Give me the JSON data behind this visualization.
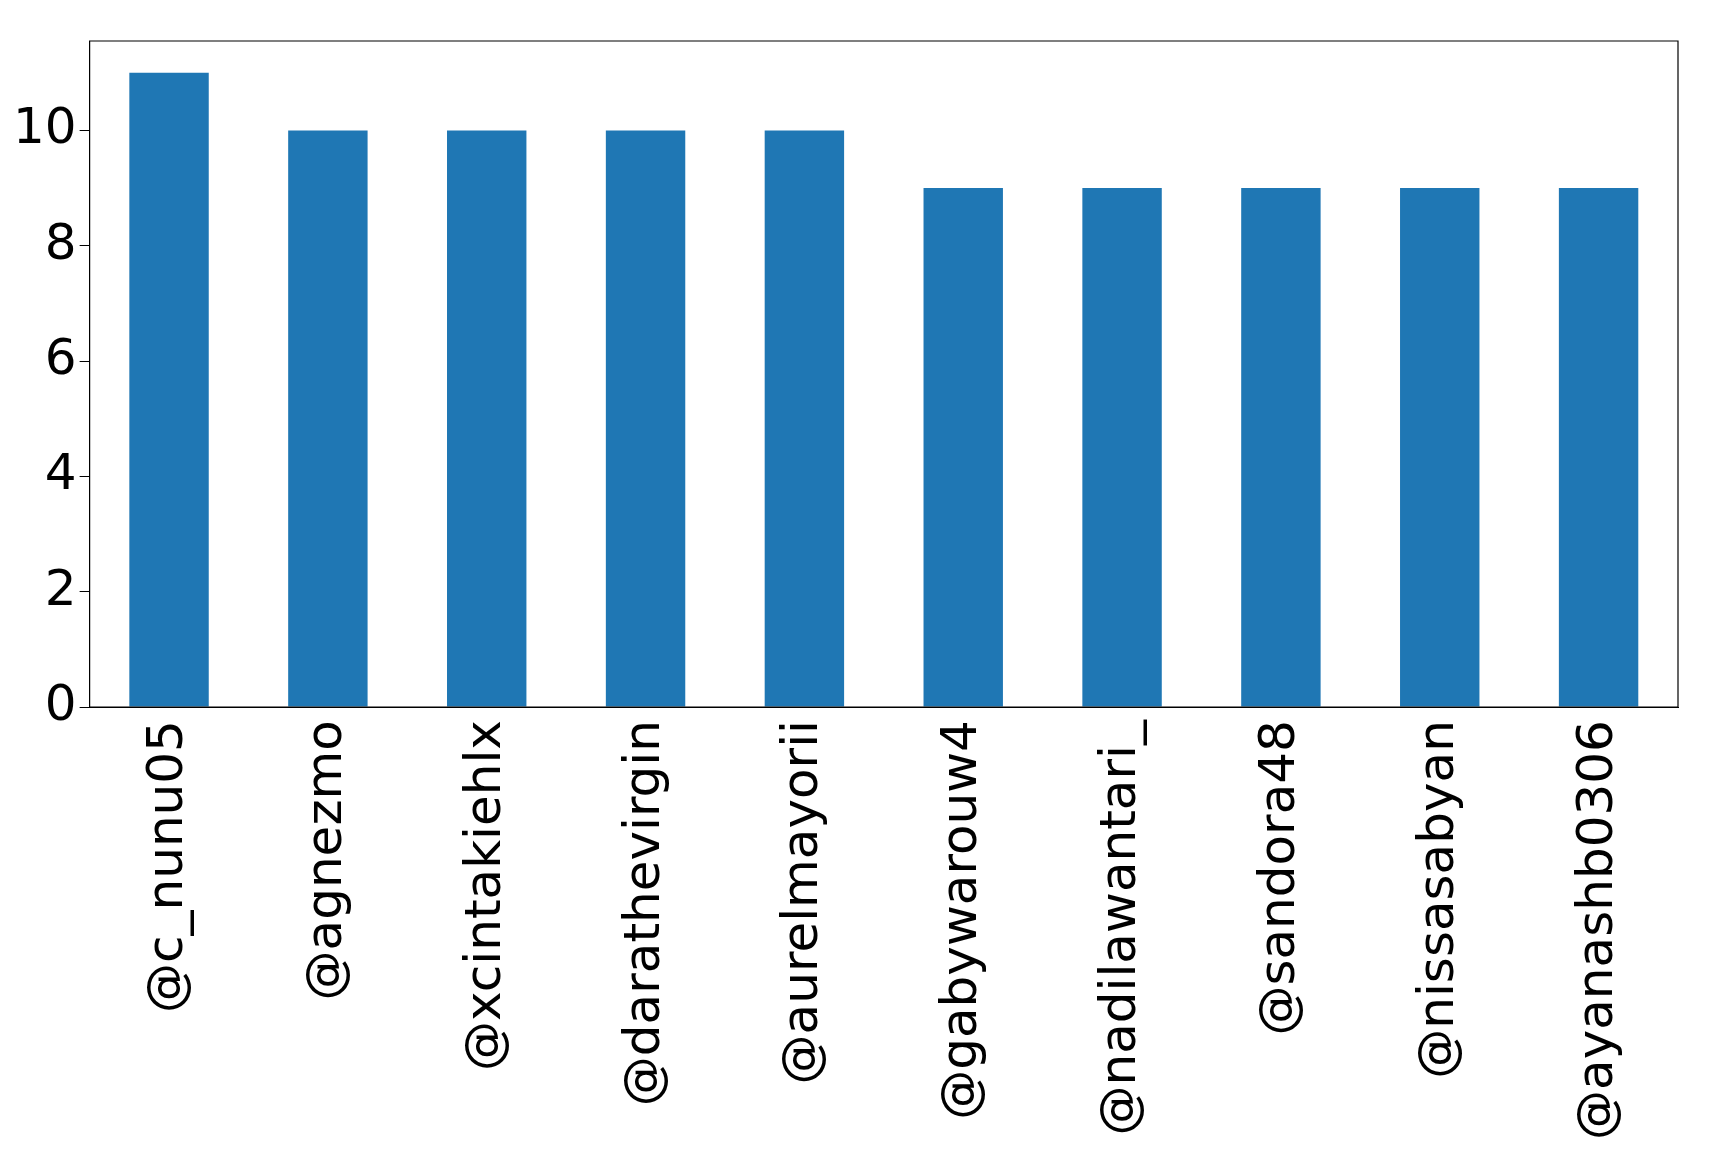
{
  "chart_data": {
    "type": "bar",
    "categories": [
      "@c_nunu05",
      "@agnezmo",
      "@xcintakiehlx",
      "@darathevirgin",
      "@aurelmayorii",
      "@gabywarouw4",
      "@nadilawantari_",
      "@sandora48",
      "@nissasabyan",
      "@ayanashb0306"
    ],
    "values": [
      11,
      10,
      10,
      10,
      10,
      9,
      9,
      9,
      9,
      9
    ],
    "color": "#1f77b4",
    "ylim": [
      0,
      11.55
    ],
    "yticks": [
      0,
      2,
      4,
      6,
      8,
      10
    ],
    "grid": false,
    "legend": false
  }
}
